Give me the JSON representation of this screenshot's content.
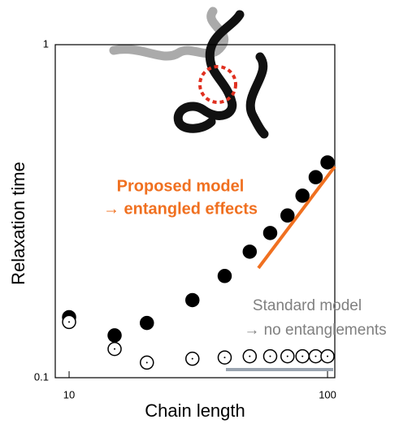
{
  "chart_data": {
    "type": "scatter",
    "x_label": "Chain length",
    "y_label": "Relaxation time",
    "x": [
      10,
      15,
      20,
      30,
      40,
      50,
      60,
      70,
      80,
      90,
      100
    ],
    "series": [
      {
        "color": "#000000",
        "marker": "filled",
        "values": [
          0.152,
          0.134,
          0.146,
          0.171,
          0.202,
          0.239,
          0.272,
          0.307,
          0.352,
          0.4,
          0.443
        ]
      },
      {
        "color": "#000000",
        "marker": "open",
        "values": [
          0.147,
          0.122,
          0.111,
          0.114,
          0.115,
          0.116,
          0.116,
          0.116,
          0.116,
          0.116,
          0.116
        ]
      }
    ],
    "xlim": [
      8.84,
      106.7
    ],
    "ylim": [
      0.1,
      1
    ],
    "xticks": [
      10,
      100
    ],
    "yticks": [
      0.1,
      1
    ],
    "xscale": "log",
    "yscale": "log",
    "annotations": [
      {
        "lines": [
          "Proposed model",
          "→ entangled effects"
        ],
        "color": "#f07020"
      },
      {
        "lines": [
          "Standard model",
          "→ no entanglements"
        ],
        "color": "#808080"
      }
    ]
  }
}
